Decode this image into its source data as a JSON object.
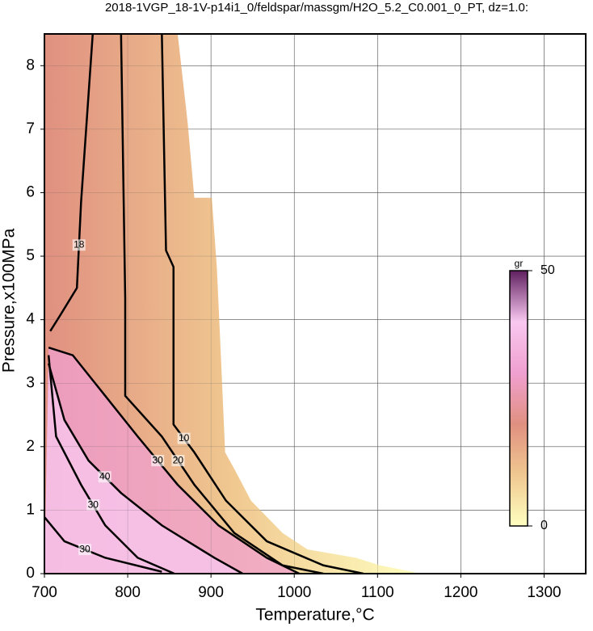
{
  "chart_data": {
    "type": "contour",
    "title": "2018-1VGP_18-1V-p14i1_0/feldspar/massgm/H2O_5.2_C0.001_0_PT, dz=1.0:",
    "xlabel": "Temperature,°C",
    "ylabel": "Pressure,x100MPa",
    "xlim": [
      700,
      1350
    ],
    "ylim": [
      0,
      8.5
    ],
    "xticks": [
      700,
      800,
      900,
      1000,
      1100,
      1200,
      1300
    ],
    "yticks": [
      0,
      1,
      2,
      3,
      4,
      5,
      6,
      7,
      8
    ],
    "grid": true,
    "data_extent": {
      "x": [
        700,
        860,
        872,
        880,
        901,
        907,
        911,
        917,
        928,
        948,
        986,
        1016,
        1074,
        1103,
        1142,
        1151,
        700
      ],
      "y": [
        8.5,
        8.5,
        7.1,
        5.92,
        5.92,
        4.83,
        3.69,
        1.91,
        1.65,
        1.15,
        0.64,
        0.38,
        0.25,
        0.13,
        0.03,
        0,
        0
      ]
    },
    "contours": [
      {
        "level": 18,
        "color": "#000000",
        "x": [
          758,
          744,
          739,
          719,
          707
        ],
        "y": [
          8.5,
          5.85,
          4.5,
          4.07,
          3.82
        ]
      },
      {
        "level": 20,
        "color": "#000000",
        "x": [
          792,
          797,
          797,
          841,
          880,
          928,
          986,
          1035
        ],
        "y": [
          8.5,
          4.33,
          2.8,
          2.16,
          1.4,
          0.64,
          0.13,
          0
        ]
      },
      {
        "level": 10,
        "color": "#000000",
        "x": [
          841,
          846,
          855,
          855,
          880,
          918,
          967,
          1035,
          1083
        ],
        "y": [
          8.5,
          5.09,
          4.83,
          2.35,
          1.91,
          1.15,
          0.51,
          0.13,
          0
        ]
      },
      {
        "level": 30,
        "color": "#000000",
        "x": [
          705,
          734,
          773,
          812,
          860,
          909,
          967,
          1006
        ],
        "y": [
          3.56,
          3.44,
          2.8,
          2.16,
          1.4,
          0.76,
          0.25,
          0
        ]
      },
      {
        "level": 40,
        "color": "#000000",
        "x": [
          705,
          724,
          753,
          792,
          841,
          904,
          938
        ],
        "y": [
          3.31,
          2.42,
          1.78,
          1.27,
          0.76,
          0.25,
          0
        ]
      },
      {
        "level": 30,
        "color": "#000000",
        "x": [
          705,
          714,
          744,
          773,
          812,
          856
        ],
        "y": [
          3.44,
          2.16,
          1.4,
          0.76,
          0.25,
          0
        ]
      },
      {
        "level": 30,
        "color": "#000000",
        "x": [
          700,
          724,
          773,
          841
        ],
        "y": [
          0.89,
          0.51,
          0.25,
          0.03
        ]
      }
    ],
    "colorbar": {
      "label": "gr",
      "lim": [
        0,
        50
      ],
      "ticks": [
        0,
        50
      ],
      "colors": [
        "#ffffc0",
        "#f0c890",
        "#e09080",
        "#f0a0d0",
        "#f8c8f0",
        "#602060"
      ]
    }
  }
}
